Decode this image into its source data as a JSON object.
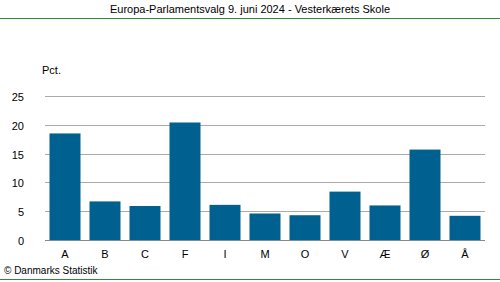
{
  "chart_data": {
    "type": "bar",
    "title": "Europa-Parlamentsvalg 9. juni 2024 - Vesterkærets Skole",
    "y_label": "Pct.",
    "categories": [
      "A",
      "B",
      "C",
      "F",
      "I",
      "M",
      "O",
      "V",
      "Æ",
      "Ø",
      "Å"
    ],
    "values": [
      18.5,
      6.7,
      5.9,
      20.4,
      6.1,
      4.6,
      4.3,
      8.4,
      6.0,
      15.7,
      4.2
    ],
    "color": "#00608f",
    "ylim": [
      0,
      25
    ],
    "yticks": [
      0,
      5,
      10,
      15,
      20,
      25
    ],
    "grid": true,
    "source": "© Danmarks Statistik"
  }
}
